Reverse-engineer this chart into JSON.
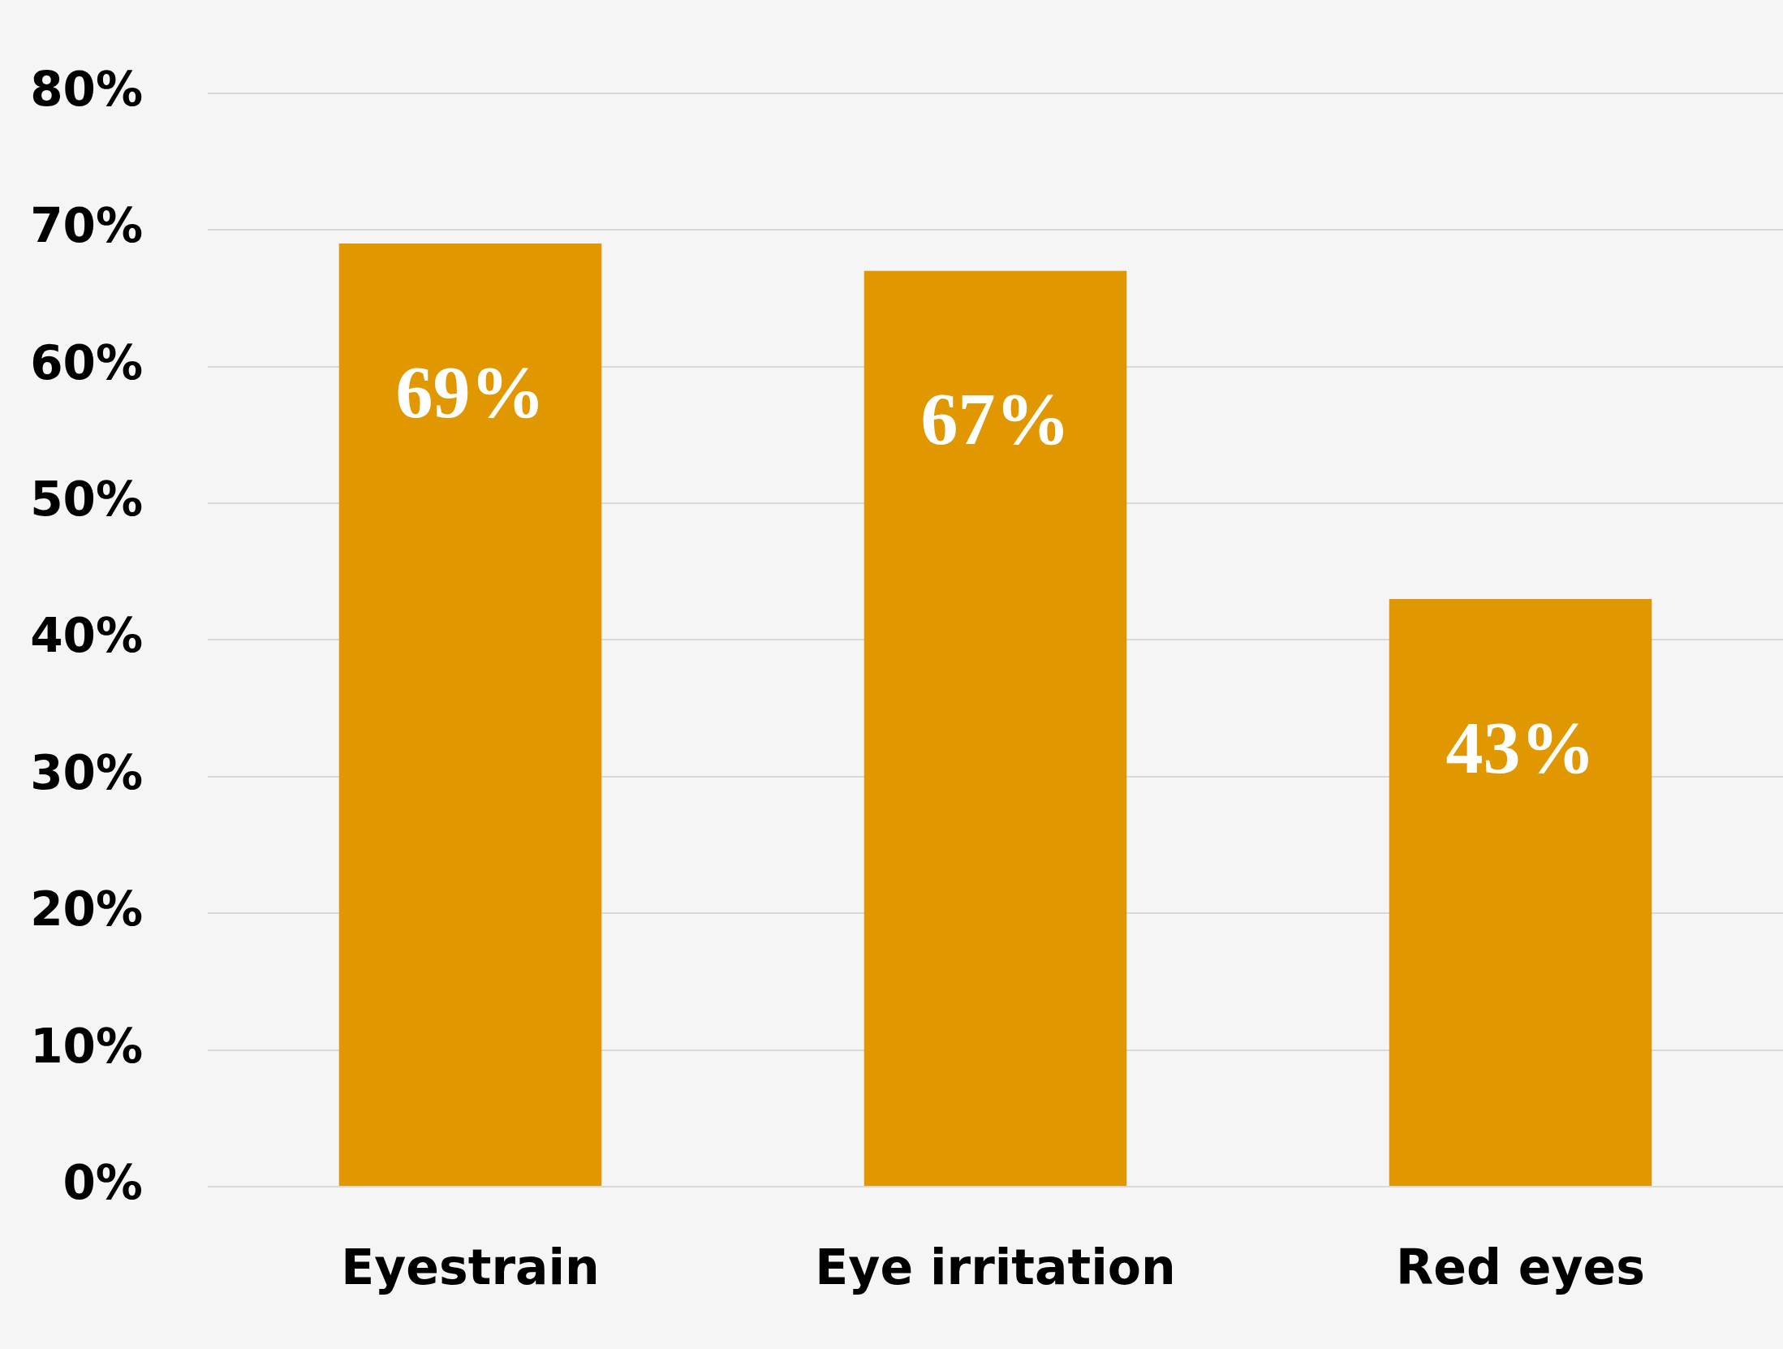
{
  "chart_data": {
    "type": "bar",
    "categories": [
      "Eyestrain",
      "Eye irritation",
      "Red eyes"
    ],
    "values": [
      69,
      67,
      43
    ],
    "color": "#e19800",
    "value_labels": [
      "69%",
      "67%",
      "43%"
    ],
    "ylim": [
      0,
      80
    ],
    "yticks": [
      {
        "value": 0,
        "label": "0%"
      },
      {
        "value": 10,
        "label": "10%"
      },
      {
        "value": 20,
        "label": "20%"
      },
      {
        "value": 30,
        "label": "30%"
      },
      {
        "value": 40,
        "label": "40%"
      },
      {
        "value": 50,
        "label": "50%"
      },
      {
        "value": 60,
        "label": "60%"
      },
      {
        "value": 70,
        "label": "70%"
      },
      {
        "value": 80,
        "label": "80%"
      }
    ],
    "grid": "y",
    "legend": false
  }
}
